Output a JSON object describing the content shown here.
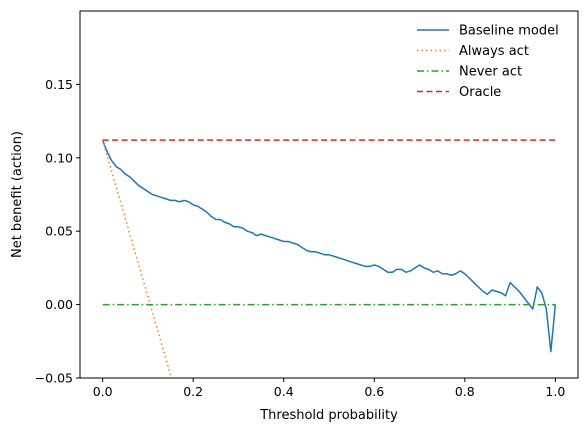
{
  "chart_data": {
    "type": "line",
    "xlabel": "Threshold probability",
    "ylabel": "Net benefit (action)",
    "xlim": [
      -0.05,
      1.05
    ],
    "ylim": [
      -0.05,
      0.2
    ],
    "grid": false,
    "legend": "top-right",
    "xticks": [
      0.0,
      0.2,
      0.4,
      0.6,
      0.8,
      1.0
    ],
    "xtick_labels": [
      "0.0",
      "0.2",
      "0.4",
      "0.6",
      "0.8",
      "1.0"
    ],
    "yticks": [
      -0.05,
      0.0,
      0.05,
      0.1,
      0.15
    ],
    "ytick_labels": [
      "−0.05",
      "0.00",
      "0.05",
      "0.10",
      "0.15"
    ],
    "series": [
      {
        "name": "Baseline model",
        "color": "#1f77b4",
        "style": "solid",
        "x": [
          0.0,
          0.01,
          0.02,
          0.03,
          0.04,
          0.05,
          0.06,
          0.07,
          0.08,
          0.09,
          0.1,
          0.11,
          0.12,
          0.13,
          0.14,
          0.15,
          0.16,
          0.17,
          0.18,
          0.19,
          0.2,
          0.21,
          0.22,
          0.23,
          0.24,
          0.25,
          0.26,
          0.27,
          0.28,
          0.29,
          0.3,
          0.31,
          0.32,
          0.33,
          0.34,
          0.35,
          0.36,
          0.37,
          0.38,
          0.39,
          0.4,
          0.41,
          0.42,
          0.43,
          0.44,
          0.45,
          0.46,
          0.47,
          0.48,
          0.49,
          0.5,
          0.51,
          0.52,
          0.53,
          0.54,
          0.55,
          0.56,
          0.57,
          0.58,
          0.59,
          0.6,
          0.61,
          0.62,
          0.63,
          0.64,
          0.65,
          0.66,
          0.67,
          0.68,
          0.69,
          0.7,
          0.71,
          0.72,
          0.73,
          0.74,
          0.75,
          0.76,
          0.77,
          0.78,
          0.79,
          0.8,
          0.81,
          0.82,
          0.83,
          0.84,
          0.85,
          0.86,
          0.87,
          0.88,
          0.89,
          0.9,
          0.91,
          0.92,
          0.93,
          0.94,
          0.95,
          0.96,
          0.97,
          0.98,
          0.99,
          1.0
        ],
        "y": [
          0.112,
          0.104,
          0.098,
          0.094,
          0.092,
          0.089,
          0.087,
          0.084,
          0.081,
          0.079,
          0.077,
          0.075,
          0.074,
          0.073,
          0.072,
          0.071,
          0.071,
          0.07,
          0.071,
          0.07,
          0.068,
          0.067,
          0.065,
          0.063,
          0.06,
          0.058,
          0.058,
          0.056,
          0.055,
          0.053,
          0.053,
          0.052,
          0.05,
          0.049,
          0.047,
          0.048,
          0.047,
          0.046,
          0.045,
          0.044,
          0.043,
          0.043,
          0.042,
          0.041,
          0.039,
          0.037,
          0.036,
          0.036,
          0.035,
          0.034,
          0.034,
          0.033,
          0.032,
          0.031,
          0.03,
          0.029,
          0.028,
          0.027,
          0.026,
          0.026,
          0.027,
          0.026,
          0.024,
          0.022,
          0.022,
          0.024,
          0.024,
          0.022,
          0.023,
          0.025,
          0.027,
          0.025,
          0.024,
          0.022,
          0.023,
          0.021,
          0.021,
          0.02,
          0.021,
          0.023,
          0.021,
          0.018,
          0.015,
          0.012,
          0.009,
          0.007,
          0.01,
          0.009,
          0.008,
          0.006,
          0.015,
          0.012,
          0.009,
          0.005,
          0.001,
          -0.003,
          0.012,
          0.008,
          -0.003,
          -0.032,
          0.0
        ]
      },
      {
        "name": "Always act",
        "color": "#ff7f0e",
        "style": "dotted",
        "x": [
          0.0,
          0.152
        ],
        "y": [
          0.112,
          -0.05
        ]
      },
      {
        "name": "Never act",
        "color": "#2ca02c",
        "style": "dashdot",
        "x": [
          0.0,
          1.0
        ],
        "y": [
          0.0,
          0.0
        ]
      },
      {
        "name": "Oracle",
        "color": "#d62728",
        "style": "dashed",
        "x": [
          0.0,
          1.0
        ],
        "y": [
          0.112,
          0.112
        ]
      }
    ]
  }
}
